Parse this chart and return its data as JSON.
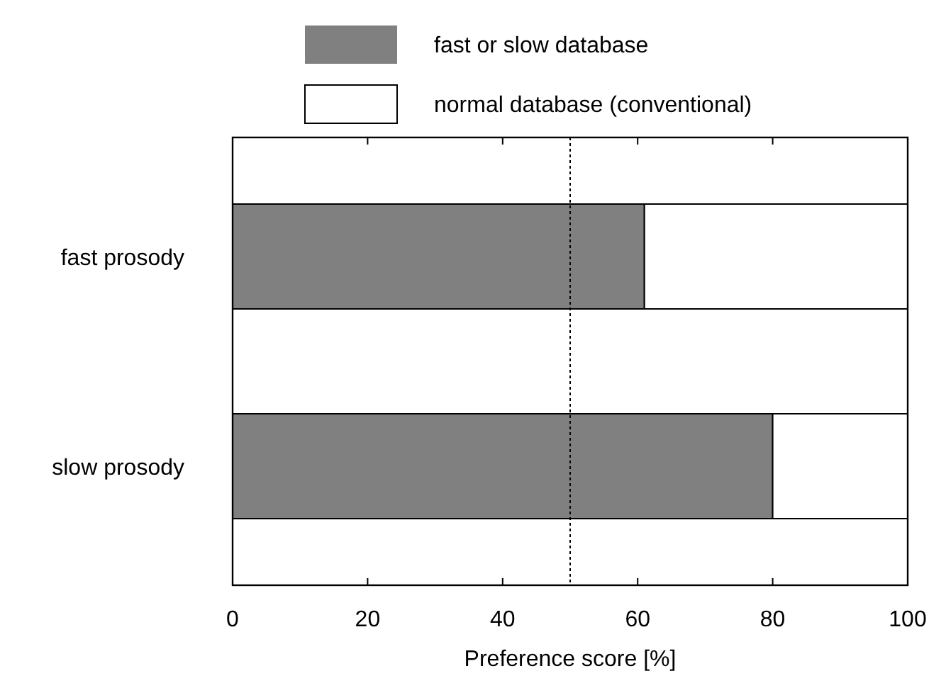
{
  "chart_data": {
    "type": "bar",
    "orientation": "horizontal",
    "stacked": true,
    "categories": [
      "fast prosody",
      "slow prosody"
    ],
    "series": [
      {
        "name": "fast or slow database",
        "color": "#808080",
        "values": [
          61,
          80
        ]
      },
      {
        "name": "normal database (conventional)",
        "color": "#ffffff",
        "values": [
          39,
          20
        ]
      }
    ],
    "xlabel": "Preference score [%]",
    "xlim": [
      0,
      100
    ],
    "xticks": [
      0,
      20,
      40,
      60,
      80,
      100
    ],
    "ref_lines": [
      {
        "axis": "x",
        "value": 50,
        "line_style": "dotted",
        "color": "#000000"
      }
    ],
    "legend": "top",
    "grid": false
  }
}
